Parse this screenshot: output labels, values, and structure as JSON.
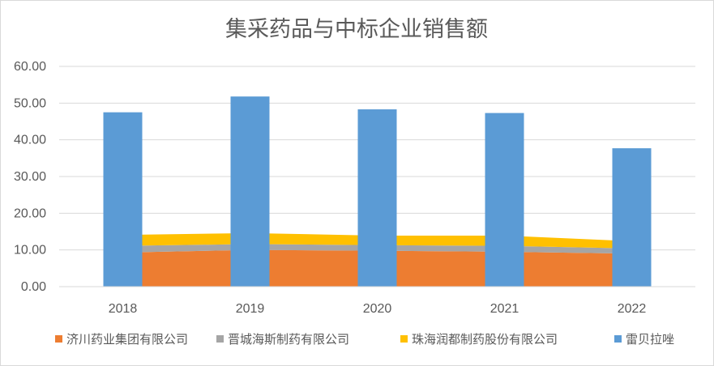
{
  "chart_data": {
    "type": "bar",
    "title": "集采药品与中标企业销售额",
    "categories": [
      "2018",
      "2019",
      "2020",
      "2021",
      "2022"
    ],
    "ylim": [
      0,
      60
    ],
    "yticks": [
      "0.00",
      "10.00",
      "20.00",
      "30.00",
      "40.00",
      "50.00",
      "60.00"
    ],
    "grid": true,
    "legend_position": "bottom",
    "series": [
      {
        "name": "济川药业集团有限公司",
        "chart_type": "stacked-area",
        "color": "#ED7D31",
        "values": [
          9.3,
          10.0,
          9.8,
          9.5,
          9.0
        ]
      },
      {
        "name": "晋城海斯制药有限公司",
        "chart_type": "stacked-area",
        "color": "#A5A5A5",
        "values": [
          1.8,
          1.6,
          1.5,
          1.6,
          1.4
        ]
      },
      {
        "name": "珠海润都制药股份有限公司",
        "chart_type": "stacked-area",
        "color": "#FFC000",
        "values": [
          3.0,
          3.0,
          2.6,
          2.8,
          2.0
        ]
      },
      {
        "name": "雷贝拉唑",
        "chart_type": "bar",
        "color": "#5B9BD5",
        "values": [
          47.5,
          51.8,
          48.3,
          47.3,
          37.7
        ]
      }
    ]
  }
}
